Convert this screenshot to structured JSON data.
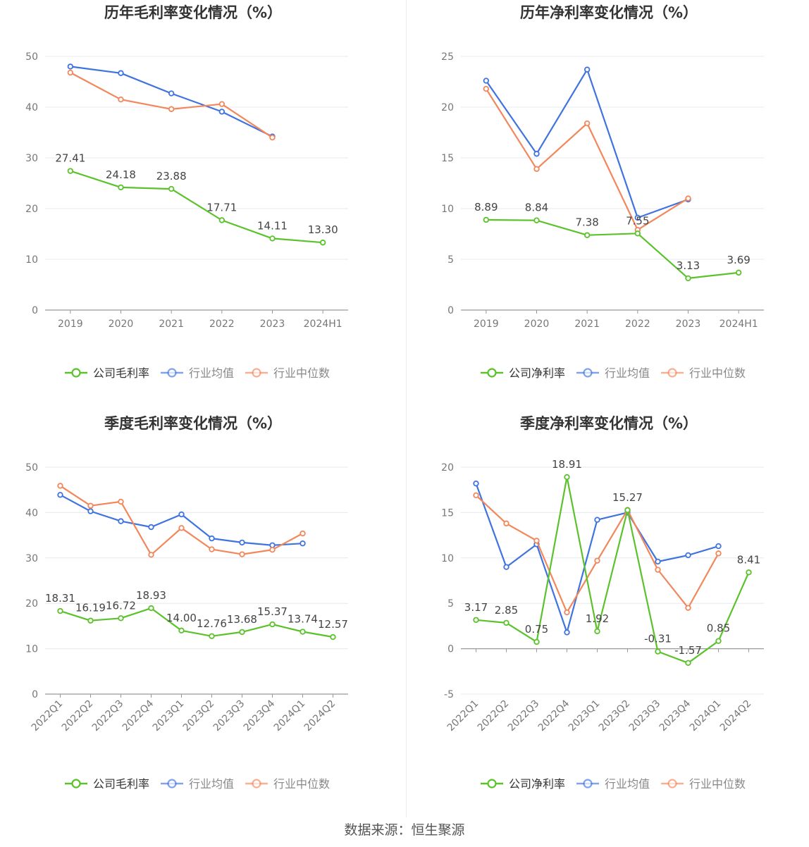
{
  "source_label": "数据来源：恒生聚源",
  "legend": {
    "series_labels": [
      "行业均值",
      "行业中位数"
    ]
  },
  "colors": {
    "company": "#5bc22b",
    "industry_avg": "#3f73e0",
    "industry_median": "#f2875b",
    "grid": "#e6e8f0",
    "axis": "#999999",
    "tick_text": "#777777",
    "label_text": "#444444",
    "title_text": "#333333"
  },
  "chart_data": [
    {
      "type": "line",
      "title": "历年毛利率变化情况（%）",
      "categories": [
        "2019",
        "2020",
        "2021",
        "2022",
        "2023",
        "2024H1"
      ],
      "ylim": [
        0,
        50
      ],
      "yticks": [
        0,
        10,
        20,
        30,
        40,
        50
      ],
      "grid": true,
      "legend": "bottom",
      "series": [
        {
          "name": "公司毛利率",
          "key": "company",
          "values": [
            27.41,
            24.18,
            23.88,
            17.71,
            14.11,
            13.3
          ],
          "labels": [
            "27.41",
            "24.18",
            "23.88",
            "17.71",
            "14.11",
            "13.30"
          ]
        },
        {
          "name": "行业均值",
          "key": "industry_avg",
          "values": [
            48.0,
            46.7,
            42.7,
            39.1,
            34.2,
            null
          ]
        },
        {
          "name": "行业中位数",
          "key": "industry_median",
          "values": [
            46.8,
            41.5,
            39.6,
            40.6,
            34.0,
            null
          ]
        }
      ]
    },
    {
      "type": "line",
      "title": "历年净利率变化情况（%）",
      "categories": [
        "2019",
        "2020",
        "2021",
        "2022",
        "2023",
        "2024H1"
      ],
      "ylim": [
        0,
        25
      ],
      "yticks": [
        0,
        5,
        10,
        15,
        20,
        25
      ],
      "grid": true,
      "legend": "bottom",
      "series": [
        {
          "name": "公司净利率",
          "key": "company",
          "values": [
            8.89,
            8.84,
            7.38,
            7.55,
            3.13,
            3.69
          ],
          "labels": [
            "8.89",
            "8.84",
            "7.38",
            "7.55",
            "3.13",
            "3.69"
          ]
        },
        {
          "name": "行业均值",
          "key": "industry_avg",
          "values": [
            22.6,
            15.4,
            23.7,
            9.1,
            10.9,
            null
          ]
        },
        {
          "name": "行业中位数",
          "key": "industry_median",
          "values": [
            21.8,
            13.9,
            18.4,
            7.9,
            11.0,
            null
          ]
        }
      ]
    },
    {
      "type": "line",
      "title": "季度毛利率变化情况（%）",
      "categories": [
        "2022Q1",
        "2022Q2",
        "2022Q3",
        "2022Q4",
        "2023Q1",
        "2023Q2",
        "2023Q3",
        "2023Q4",
        "2024Q1",
        "2024Q2"
      ],
      "ylim": [
        0,
        50
      ],
      "yticks": [
        0,
        10,
        20,
        30,
        40,
        50
      ],
      "grid": true,
      "legend": "bottom",
      "series": [
        {
          "name": "公司毛利率",
          "key": "company",
          "values": [
            18.31,
            16.19,
            16.72,
            18.93,
            14.0,
            12.76,
            13.68,
            15.37,
            13.74,
            12.57
          ],
          "labels": [
            "18.31",
            "16.19",
            "16.72",
            "18.93",
            "14.00",
            "12.76",
            "13.68",
            "15.37",
            "13.74",
            "12.57"
          ]
        },
        {
          "name": "行业均值",
          "key": "industry_avg",
          "values": [
            43.9,
            40.3,
            38.1,
            36.8,
            39.6,
            34.3,
            33.4,
            32.8,
            33.2,
            null
          ]
        },
        {
          "name": "行业中位数",
          "key": "industry_median",
          "values": [
            45.9,
            41.5,
            42.4,
            30.7,
            36.6,
            31.9,
            30.8,
            31.8,
            35.4,
            null
          ]
        }
      ]
    },
    {
      "type": "line",
      "title": "季度净利率变化情况（%）",
      "categories": [
        "2022Q1",
        "2022Q2",
        "2022Q3",
        "2022Q4",
        "2023Q1",
        "2023Q2",
        "2023Q3",
        "2023Q4",
        "2024Q1",
        "2024Q2"
      ],
      "ylim": [
        -5,
        20
      ],
      "yticks": [
        -5,
        0,
        5,
        10,
        15,
        20
      ],
      "grid": true,
      "legend": "bottom",
      "series": [
        {
          "name": "公司净利率",
          "key": "company",
          "values": [
            3.17,
            2.85,
            0.75,
            18.91,
            1.92,
            15.27,
            -0.31,
            -1.57,
            0.85,
            8.41
          ],
          "labels": [
            "3.17",
            "2.85",
            "0.75",
            "18.91",
            "1.92",
            "15.27",
            "-0.31",
            "-1.57",
            "0.85",
            "8.41"
          ]
        },
        {
          "name": "行业均值",
          "key": "industry_avg",
          "values": [
            18.2,
            9.0,
            11.5,
            1.8,
            14.2,
            15.0,
            9.6,
            10.3,
            11.3,
            null
          ]
        },
        {
          "name": "行业中位数",
          "key": "industry_median",
          "values": [
            16.9,
            13.8,
            11.9,
            4.0,
            9.7,
            15.3,
            8.7,
            4.5,
            10.5,
            null
          ]
        }
      ]
    }
  ]
}
